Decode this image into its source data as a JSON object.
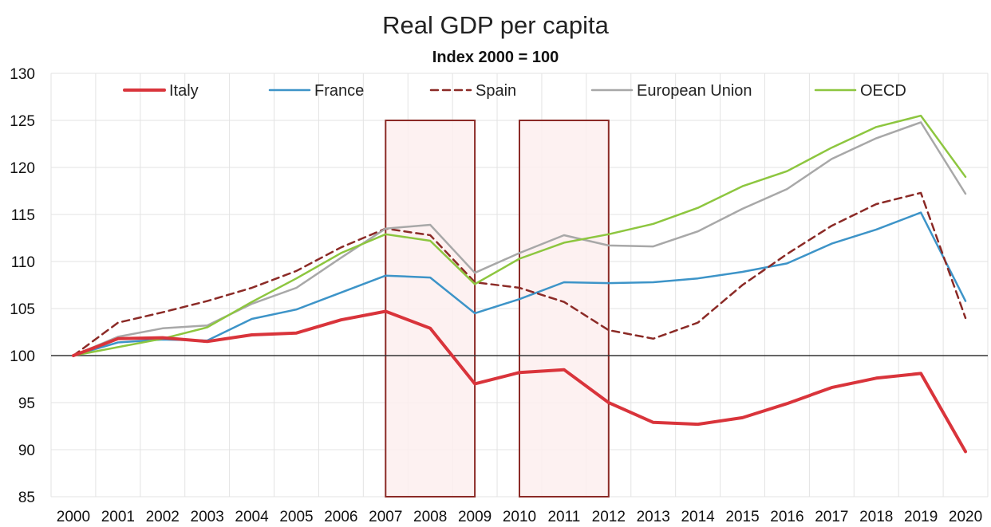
{
  "chart_data": {
    "type": "line",
    "title": "Real GDP per capita",
    "subtitle": "Index 2000 = 100",
    "xlabel": "",
    "ylabel": "",
    "ylim": [
      85,
      130
    ],
    "yticks": [
      "85",
      "90",
      "95",
      "100",
      "105",
      "110",
      "115",
      "120",
      "125",
      "130"
    ],
    "categories": [
      "2000",
      "2001",
      "2002",
      "2003",
      "2004",
      "2005",
      "2006",
      "2007",
      "2008",
      "2009",
      "2010",
      "2011",
      "2012",
      "2013",
      "2014",
      "2015",
      "2016",
      "2017",
      "2018",
      "2019",
      "2020"
    ],
    "legend_position": "top",
    "reference_line": 100,
    "grid": true,
    "shaded_periods": [
      {
        "from": "2007",
        "to": "2009",
        "ymax": 125
      },
      {
        "from": "2010",
        "to": "2012",
        "ymax": 125
      }
    ],
    "series": [
      {
        "name": "Italy",
        "color": "#d9343b",
        "style": "solid",
        "width": 4,
        "values": [
          100,
          101.8,
          101.9,
          101.5,
          102.2,
          102.4,
          103.8,
          104.7,
          102.9,
          97.0,
          98.2,
          98.5,
          95.0,
          92.9,
          92.7,
          93.4,
          94.9,
          96.6,
          97.6,
          98.1,
          89.8
        ]
      },
      {
        "name": "France",
        "color": "#3d94c8",
        "style": "solid",
        "width": 2.5,
        "values": [
          100,
          101.4,
          101.7,
          101.6,
          103.9,
          104.9,
          106.7,
          108.5,
          108.3,
          104.5,
          106.0,
          107.8,
          107.7,
          107.8,
          108.2,
          108.9,
          109.8,
          111.9,
          113.4,
          115.2,
          105.8
        ]
      },
      {
        "name": "Spain",
        "color": "#8b2a26",
        "style": "dashed",
        "width": 2.5,
        "values": [
          100,
          103.5,
          104.6,
          105.8,
          107.2,
          109.0,
          111.5,
          113.5,
          112.8,
          107.8,
          107.2,
          105.7,
          102.7,
          101.8,
          103.5,
          107.5,
          110.8,
          113.8,
          116.1,
          117.3,
          104.0
        ]
      },
      {
        "name": "European Union",
        "color": "#a8a8a8",
        "style": "solid",
        "width": 2.5,
        "values": [
          100,
          102.0,
          102.9,
          103.2,
          105.5,
          107.2,
          110.4,
          113.5,
          113.9,
          108.8,
          110.9,
          112.8,
          111.7,
          111.6,
          113.2,
          115.6,
          117.7,
          120.9,
          123.1,
          124.8,
          117.2
        ]
      },
      {
        "name": "OECD",
        "color": "#8dc63f",
        "style": "solid",
        "width": 2.5,
        "values": [
          100,
          100.9,
          101.8,
          103.0,
          105.7,
          108.2,
          110.9,
          112.9,
          112.2,
          107.6,
          110.3,
          112.0,
          112.9,
          114.0,
          115.7,
          118.0,
          119.6,
          122.1,
          124.3,
          125.5,
          119.0
        ]
      }
    ]
  }
}
